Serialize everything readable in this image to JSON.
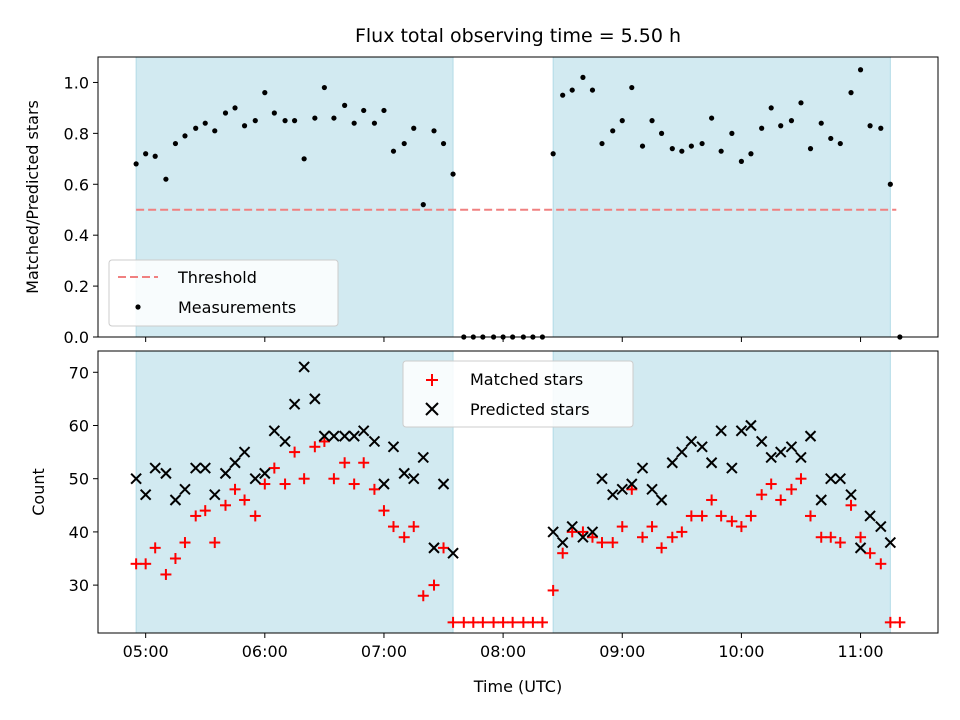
{
  "title": "Flux total observing time = 5.50 h",
  "colors": {
    "band": "#add8e6",
    "threshold": "#f08080",
    "matched": "#ff0000",
    "predicted": "#000000",
    "measurement": "#000000"
  },
  "x_axis": {
    "label": "Time (UTC)",
    "unit": "hours UTC",
    "ticks": [
      {
        "value": 5,
        "label": "05:00"
      },
      {
        "value": 6,
        "label": "06:00"
      },
      {
        "value": 7,
        "label": "07:00"
      },
      {
        "value": 8,
        "label": "08:00"
      },
      {
        "value": 9,
        "label": "09:00"
      },
      {
        "value": 10,
        "label": "10:00"
      },
      {
        "value": 11,
        "label": "11:00"
      }
    ],
    "xlim": [
      4.6,
      11.65
    ]
  },
  "chart_data": [
    {
      "type": "scatter",
      "ylabel": "Matched/Predicted stars",
      "ylim": [
        0,
        1.1
      ],
      "yticks": [
        "0.0",
        "0.2",
        "0.4",
        "0.6",
        "0.8",
        "1.0"
      ],
      "shaded_intervals": [
        [
          4.92,
          7.58
        ],
        [
          8.42,
          11.25
        ]
      ],
      "threshold": {
        "name": "Threshold",
        "y": 0.5,
        "x_range": [
          4.92,
          11.3
        ]
      },
      "legend": {
        "position": "lower left",
        "entries": [
          "Threshold",
          "Measurements"
        ]
      },
      "series": [
        {
          "name": "Measurements",
          "marker": "dot",
          "x": [
            4.92,
            5.0,
            5.08,
            5.17,
            5.25,
            5.33,
            5.42,
            5.5,
            5.58,
            5.67,
            5.75,
            5.83,
            5.92,
            6.0,
            6.08,
            6.17,
            6.25,
            6.33,
            6.42,
            6.5,
            6.58,
            6.67,
            6.75,
            6.83,
            6.92,
            7.0,
            7.08,
            7.17,
            7.25,
            7.33,
            7.42,
            7.5,
            7.58,
            7.67,
            7.75,
            7.83,
            7.92,
            8.0,
            8.08,
            8.17,
            8.25,
            8.33,
            8.42,
            8.5,
            8.58,
            8.67,
            8.75,
            8.83,
            8.92,
            9.0,
            9.08,
            9.17,
            9.25,
            9.33,
            9.42,
            9.5,
            9.58,
            9.67,
            9.75,
            9.83,
            9.92,
            10.0,
            10.08,
            10.17,
            10.25,
            10.33,
            10.42,
            10.5,
            10.58,
            10.67,
            10.75,
            10.83,
            10.92,
            11.0,
            11.08,
            11.17,
            11.25,
            11.33
          ],
          "y": [
            0.68,
            0.72,
            0.71,
            0.62,
            0.76,
            0.79,
            0.82,
            0.84,
            0.81,
            0.88,
            0.9,
            0.83,
            0.85,
            0.96,
            0.88,
            0.85,
            0.85,
            0.7,
            0.86,
            0.98,
            0.86,
            0.91,
            0.84,
            0.89,
            0.84,
            0.89,
            0.73,
            0.76,
            0.82,
            0.52,
            0.81,
            0.76,
            0.64,
            0.0,
            0.0,
            0.0,
            0.0,
            0.0,
            0.0,
            0.0,
            0.0,
            0.0,
            0.72,
            0.95,
            0.97,
            1.02,
            0.97,
            0.76,
            0.81,
            0.85,
            0.98,
            0.75,
            0.85,
            0.8,
            0.74,
            0.73,
            0.75,
            0.76,
            0.86,
            0.73,
            0.8,
            0.69,
            0.72,
            0.82,
            0.9,
            0.83,
            0.85,
            0.92,
            0.74,
            0.84,
            0.78,
            0.76,
            0.96,
            1.05,
            0.83,
            0.82,
            0.6,
            0.0
          ]
        }
      ]
    },
    {
      "type": "scatter",
      "ylabel": "Count",
      "ylim": [
        21,
        74
      ],
      "yticks": [
        "30",
        "40",
        "50",
        "60",
        "70"
      ],
      "shaded_intervals": [
        [
          4.92,
          7.58
        ],
        [
          8.42,
          11.25
        ]
      ],
      "legend": {
        "position": "upper center",
        "entries": [
          "Matched stars",
          "Predicted stars"
        ]
      },
      "series": [
        {
          "name": "Matched stars",
          "marker": "plus",
          "x": [
            4.92,
            5.0,
            5.08,
            5.17,
            5.25,
            5.33,
            5.42,
            5.5,
            5.58,
            5.67,
            5.75,
            5.83,
            5.92,
            6.0,
            6.08,
            6.17,
            6.25,
            6.33,
            6.42,
            6.5,
            6.58,
            6.67,
            6.75,
            6.83,
            6.92,
            7.0,
            7.08,
            7.17,
            7.25,
            7.33,
            7.42,
            7.5,
            7.58,
            7.67,
            7.75,
            7.83,
            7.92,
            8.0,
            8.08,
            8.17,
            8.25,
            8.33,
            8.42,
            8.5,
            8.58,
            8.67,
            8.75,
            8.83,
            8.92,
            9.0,
            9.08,
            9.17,
            9.25,
            9.33,
            9.42,
            9.5,
            9.58,
            9.67,
            9.75,
            9.83,
            9.92,
            10.0,
            10.08,
            10.17,
            10.25,
            10.33,
            10.42,
            10.5,
            10.58,
            10.67,
            10.75,
            10.83,
            10.92,
            11.0,
            11.08,
            11.17,
            11.25,
            11.33
          ],
          "y": [
            34,
            34,
            37,
            32,
            35,
            38,
            43,
            44,
            38,
            45,
            48,
            46,
            43,
            49,
            52,
            49,
            55,
            50,
            56,
            57,
            50,
            53,
            49,
            53,
            48,
            44,
            41,
            39,
            41,
            28,
            30,
            37,
            23,
            23,
            23,
            23,
            23,
            23,
            23,
            23,
            23,
            23,
            29,
            36,
            40,
            40,
            39,
            38,
            38,
            41,
            48,
            39,
            41,
            37,
            39,
            40,
            43,
            43,
            46,
            43,
            42,
            41,
            43,
            47,
            49,
            46,
            48,
            50,
            43,
            39,
            39,
            38,
            45,
            39,
            36,
            34,
            23,
            23
          ]
        },
        {
          "name": "Predicted stars",
          "marker": "x",
          "x": [
            4.92,
            5.0,
            5.08,
            5.17,
            5.25,
            5.33,
            5.42,
            5.5,
            5.58,
            5.67,
            5.75,
            5.83,
            5.92,
            6.0,
            6.08,
            6.17,
            6.25,
            6.33,
            6.42,
            6.5,
            6.58,
            6.67,
            6.75,
            6.83,
            6.92,
            7.0,
            7.08,
            7.17,
            7.25,
            7.33,
            7.42,
            7.5,
            7.58,
            8.42,
            8.5,
            8.58,
            8.67,
            8.75,
            8.83,
            8.92,
            9.0,
            9.08,
            9.17,
            9.25,
            9.33,
            9.42,
            9.5,
            9.58,
            9.67,
            9.75,
            9.83,
            9.92,
            10.0,
            10.08,
            10.17,
            10.25,
            10.33,
            10.42,
            10.5,
            10.58,
            10.67,
            10.75,
            10.83,
            10.92,
            11.0,
            11.08,
            11.17,
            11.25
          ],
          "y": [
            50,
            47,
            52,
            51,
            46,
            48,
            52,
            52,
            47,
            51,
            53,
            55,
            50,
            51,
            59,
            57,
            64,
            71,
            65,
            58,
            58,
            58,
            58,
            59,
            57,
            49,
            56,
            51,
            50,
            54,
            37,
            49,
            36,
            40,
            38,
            41,
            39,
            40,
            50,
            47,
            48,
            49,
            52,
            48,
            46,
            53,
            55,
            57,
            56,
            53,
            59,
            52,
            59,
            60,
            57,
            54,
            55,
            56,
            54,
            58,
            46,
            50,
            50,
            47,
            37,
            43,
            41,
            38
          ]
        }
      ]
    }
  ]
}
